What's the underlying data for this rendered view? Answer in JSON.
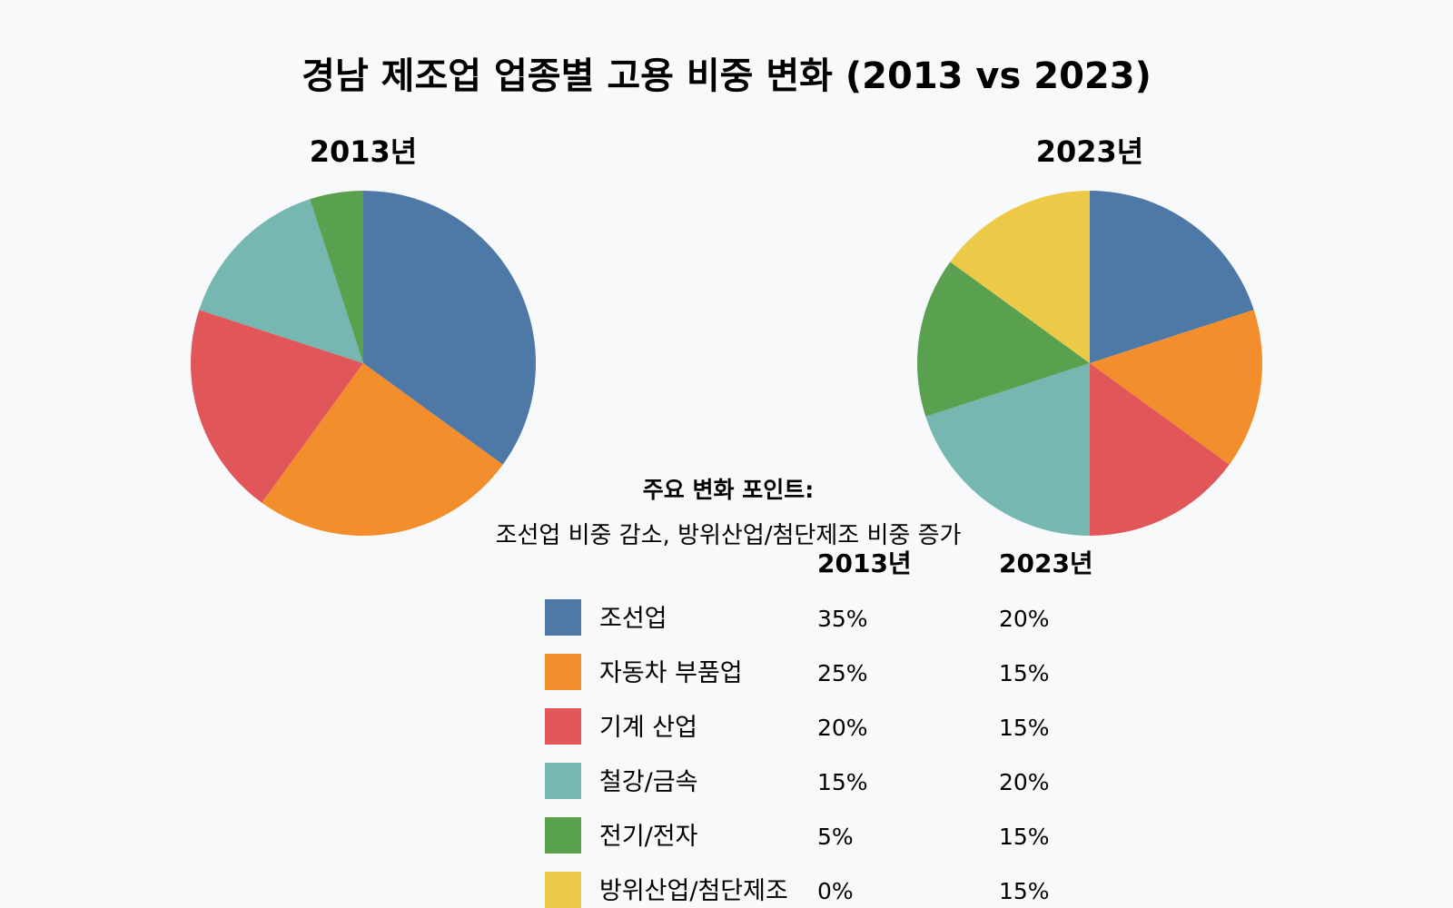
{
  "chart_data": {
    "type": "pie",
    "title": "경남 제조업 업종별 고용 비중 변화 (2013 vs 2023)",
    "categories": [
      "조선업",
      "자동차 부품업",
      "기계 산업",
      "철강/금속",
      "전기/전자",
      "방위산업/첨단제조"
    ],
    "colors": [
      "#4e79a7",
      "#f28e2b",
      "#e15759",
      "#76b7b2",
      "#59a14f",
      "#edc948"
    ],
    "series": [
      {
        "name": "2013년",
        "values": [
          35,
          25,
          20,
          15,
          5,
          0
        ],
        "unit": "%"
      },
      {
        "name": "2023년",
        "values": [
          20,
          15,
          15,
          20,
          15,
          15
        ],
        "unit": "%"
      }
    ]
  },
  "annotation": {
    "heading": "주요 변화 포인트:",
    "text": "조선업 비중 감소, 방위산업/첨단제조 비중 증가"
  },
  "legend": {
    "col_2013": "2013년",
    "col_2023": "2023년",
    "rows": [
      {
        "label": "조선업",
        "v2013": "35%",
        "v2023": "20%"
      },
      {
        "label": "자동차 부품업",
        "v2013": "25%",
        "v2023": "15%"
      },
      {
        "label": "기계 산업",
        "v2013": "20%",
        "v2023": "15%"
      },
      {
        "label": "철강/금속",
        "v2013": "15%",
        "v2023": "20%"
      },
      {
        "label": "전기/전자",
        "v2013": "5%",
        "v2023": "15%"
      },
      {
        "label": "방위산업/첨단제조",
        "v2013": "0%",
        "v2023": "15%"
      }
    ]
  }
}
